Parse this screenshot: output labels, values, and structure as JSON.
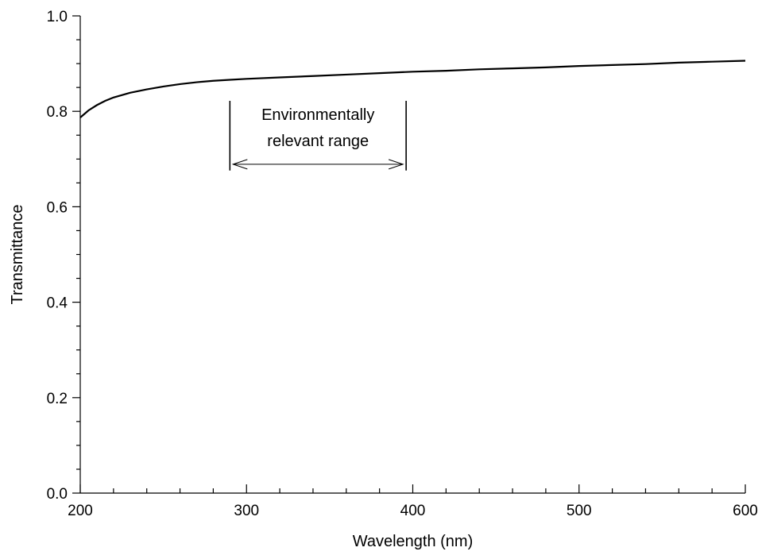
{
  "chart_data": {
    "type": "line",
    "title": "",
    "xlabel": "Wavelength (nm)",
    "ylabel": "Transmittance",
    "xlim": [
      200,
      600
    ],
    "ylim": [
      0.0,
      1.0
    ],
    "x_ticks": [
      200,
      300,
      400,
      500,
      600
    ],
    "x_tick_labels": [
      "200",
      "300",
      "400",
      "500",
      "600"
    ],
    "x_minor_step": 20,
    "y_ticks": [
      0.0,
      0.2,
      0.4,
      0.6,
      0.8,
      1.0
    ],
    "y_tick_labels": [
      "0.0",
      "0.2",
      "0.4",
      "0.6",
      "0.8",
      "1.0"
    ],
    "y_minor_step": 0.05,
    "grid": false,
    "series": [
      {
        "color": "#000000",
        "x": [
          200,
          205,
          210,
          215,
          220,
          225,
          230,
          240,
          250,
          260,
          270,
          280,
          290,
          300,
          320,
          340,
          360,
          380,
          400,
          420,
          440,
          460,
          480,
          500,
          520,
          540,
          560,
          580,
          600
        ],
        "y": [
          0.787,
          0.802,
          0.813,
          0.822,
          0.829,
          0.834,
          0.839,
          0.846,
          0.852,
          0.857,
          0.861,
          0.864,
          0.866,
          0.868,
          0.871,
          0.874,
          0.877,
          0.88,
          0.883,
          0.885,
          0.888,
          0.89,
          0.892,
          0.895,
          0.897,
          0.899,
          0.902,
          0.904,
          0.906
        ]
      }
    ],
    "annotation": {
      "lines": [
        "Environmentally",
        "relevant range"
      ],
      "x_start": 290,
      "x_end": 396,
      "marker_y_top": 0.822,
      "marker_y_bottom": 0.676,
      "arrow_y": 0.689
    }
  }
}
